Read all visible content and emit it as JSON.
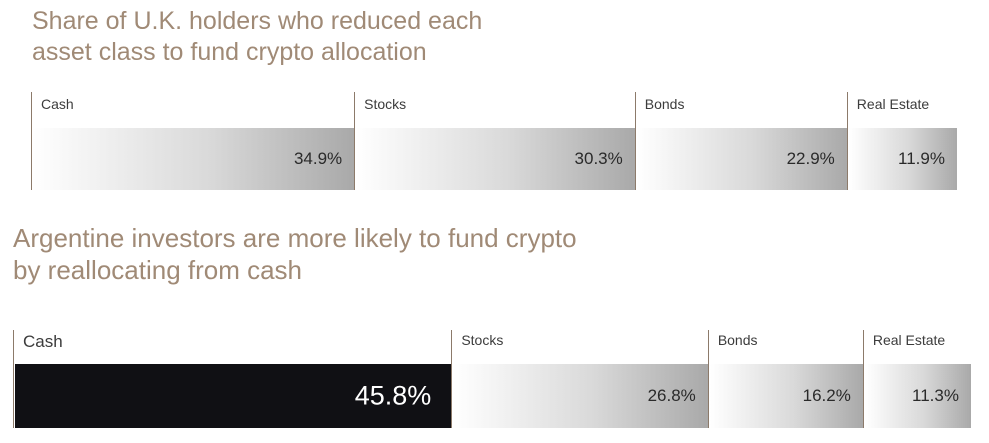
{
  "chart_data": [
    {
      "type": "bar",
      "layout": "stacked-horizontal",
      "title": "Share of U.K. holders who reduced each asset class to fund crypto allocation",
      "title_lines": [
        "Share of U.K. holders who reduced each",
        "asset class to fund crypto allocation"
      ],
      "categories": [
        "Cash",
        "Stocks",
        "Bonds",
        "Real Estate"
      ],
      "values": [
        34.9,
        30.3,
        22.9,
        11.9
      ],
      "value_labels": [
        "34.9%",
        "30.3%",
        "22.9%",
        "11.9%"
      ],
      "unit": "%"
    },
    {
      "type": "bar",
      "layout": "stacked-horizontal",
      "title": "Argentine investors are more likely to fund crypto by reallocating from cash",
      "title_lines": [
        "Argentine investors are more likely to fund crypto",
        "by reallocating from cash"
      ],
      "categories": [
        "Cash",
        "Stocks",
        "Bonds",
        "Real Estate"
      ],
      "values": [
        45.8,
        26.8,
        16.2,
        11.3
      ],
      "value_labels": [
        "45.8%",
        "26.8%",
        "16.2%",
        "11.3%"
      ],
      "unit": "%",
      "highlight_index": 0
    }
  ],
  "colors": {
    "title": "#a08a76",
    "divider": "#8c7a6a",
    "highlight_fill": "#101014",
    "gradient_light": "#ffffff",
    "gradient_dark": "#a9a9a9"
  }
}
